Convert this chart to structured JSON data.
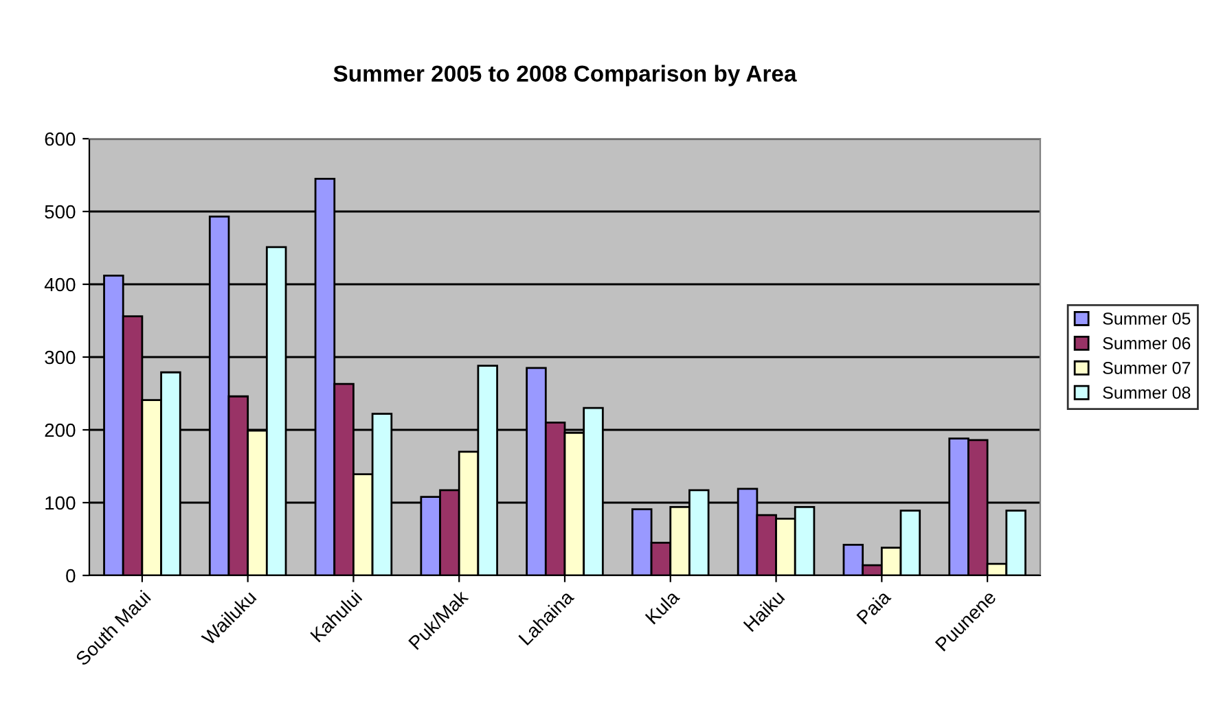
{
  "chart_data": {
    "type": "bar",
    "title": "Summer 2005 to 2008 Comparison by Area",
    "categories": [
      "South Maui",
      "Wailuku",
      "Kahului",
      "Puk/Mak",
      "Lahaina",
      "Kula",
      "Haiku",
      "Paia",
      "Puunene"
    ],
    "series": [
      {
        "name": "Summer 05",
        "color": "#9999ff",
        "values": [
          412,
          493,
          545,
          108,
          285,
          91,
          119,
          42,
          188
        ]
      },
      {
        "name": "Summer 06",
        "color": "#993366",
        "values": [
          356,
          246,
          263,
          117,
          210,
          45,
          83,
          14,
          186
        ]
      },
      {
        "name": "Summer 07",
        "color": "#ffffcc",
        "values": [
          241,
          199,
          139,
          170,
          196,
          94,
          78,
          38,
          16
        ]
      },
      {
        "name": "Summer 08",
        "color": "#ccffff",
        "values": [
          279,
          451,
          222,
          288,
          230,
          117,
          94,
          89,
          89
        ]
      }
    ],
    "ylim": [
      0,
      600
    ],
    "yticks": [
      0,
      100,
      200,
      300,
      400,
      500,
      600
    ],
    "grid": "y",
    "legend": "right"
  }
}
